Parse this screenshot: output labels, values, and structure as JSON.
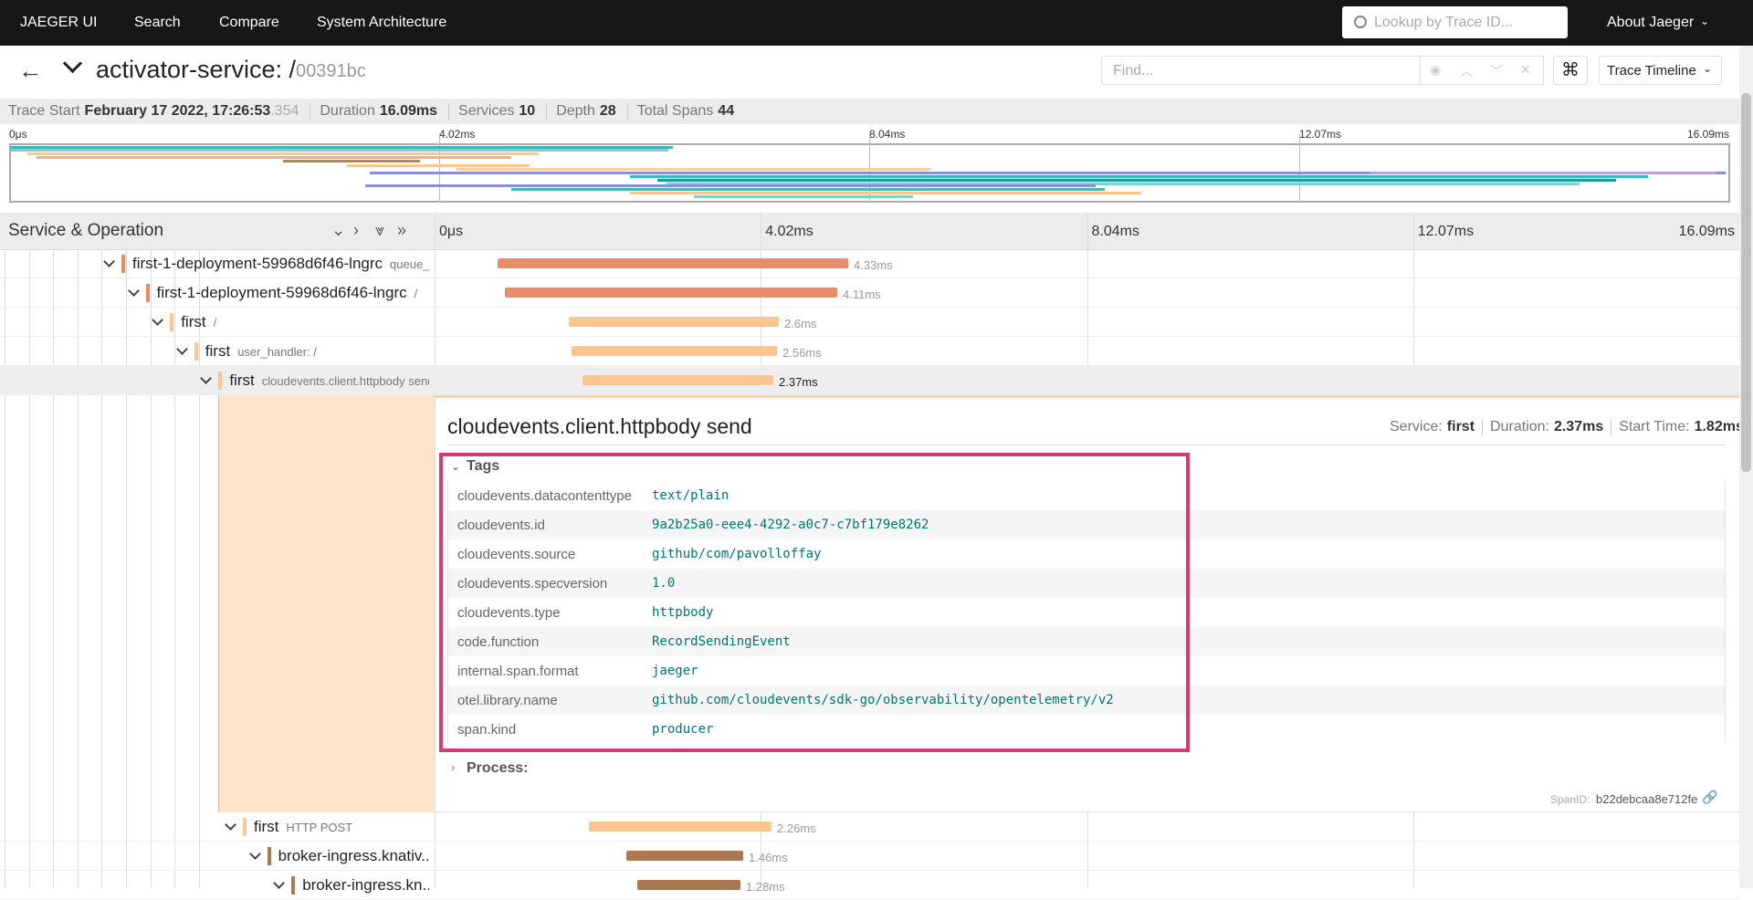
{
  "nav": {
    "brand": "JAEGER UI",
    "links": [
      "Search",
      "Compare",
      "System Architecture"
    ],
    "search_placeholder": "Lookup by Trace ID...",
    "about": "About Jaeger"
  },
  "header": {
    "service_title": "activator-service: /",
    "trace_id": "00391bc",
    "find_placeholder": "Find...",
    "view": "Trace Timeline"
  },
  "trace_info": {
    "trace_start_label": "Trace Start",
    "trace_start": "February 17 2022, 17:26:53",
    "trace_start_ms": ".354",
    "duration_label": "Duration",
    "duration": "16.09ms",
    "services_label": "Services",
    "services": "10",
    "depth_label": "Depth",
    "depth": "28",
    "total_spans_label": "Total Spans",
    "total_spans": "44"
  },
  "time_ticks": [
    "0μs",
    "4.02ms",
    "8.04ms",
    "12.07ms",
    "16.09ms"
  ],
  "column_header": "Service & Operation",
  "spans": [
    {
      "service": "first-1-deployment-59968d6f46-lngrc",
      "operation": "queue_...",
      "duration": "4.33ms"
    },
    {
      "service": "first-1-deployment-59968d6f46-lngrc",
      "operation": "/",
      "duration": "4.11ms"
    },
    {
      "service": "first",
      "operation": "/",
      "duration": "2.6ms"
    },
    {
      "service": "first",
      "operation": "user_handler: /",
      "duration": "2.56ms"
    },
    {
      "service": "first",
      "operation": "cloudevents.client.httpbody send",
      "duration": "2.37ms"
    },
    {
      "service": "first",
      "operation": "HTTP POST",
      "duration": "2.26ms"
    },
    {
      "service": "broker-ingress.knativ...",
      "duration": "1.46ms"
    },
    {
      "service": "broker-ingress.kn...",
      "duration": "1.28ms"
    }
  ],
  "detail": {
    "operation": "cloudevents.client.httpbody send",
    "service_label": "Service:",
    "service": "first",
    "duration_label": "Duration:",
    "duration": "2.37ms",
    "start_label": "Start Time:",
    "start": "1.82ms",
    "tags_label": "Tags",
    "tags": [
      [
        "cloudevents.datacontenttype",
        "text/plain"
      ],
      [
        "cloudevents.id",
        "9a2b25a0-eee4-4292-a0c7-c7bf179e8262"
      ],
      [
        "cloudevents.source",
        "github/com/pavolloffay"
      ],
      [
        "cloudevents.specversion",
        "1.0"
      ],
      [
        "cloudevents.type",
        "httpbody"
      ],
      [
        "code.function",
        "RecordSendingEvent"
      ],
      [
        "internal.span.format",
        "jaeger"
      ],
      [
        "otel.library.name",
        "github.com/cloudevents/sdk-go/observability/opentelemetry/v2"
      ],
      [
        "span.kind",
        "producer"
      ]
    ],
    "process_label": "Process:",
    "span_id_label": "SpanID:",
    "span_id": "b22debcaa8e712fe"
  }
}
